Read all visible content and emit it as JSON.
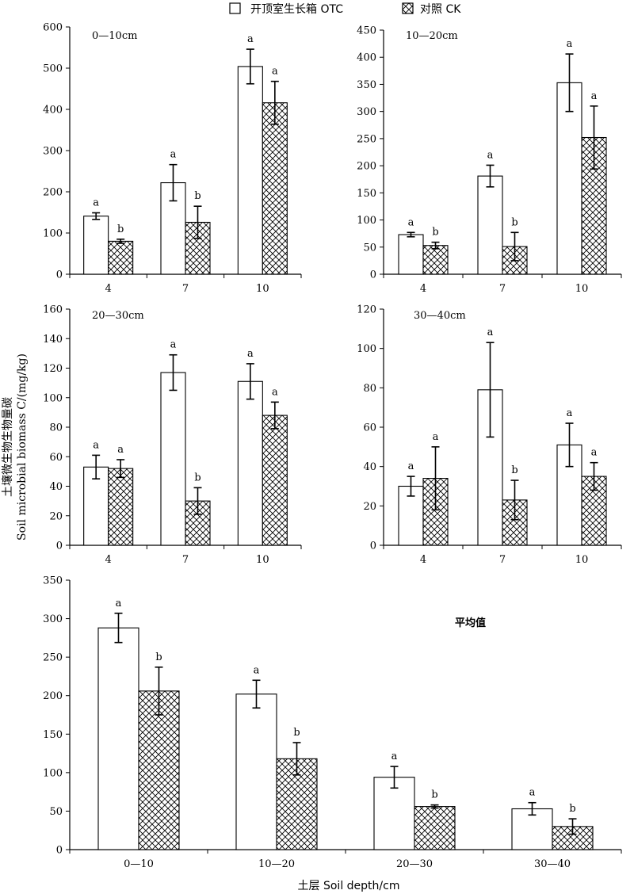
{
  "legend": {
    "otc_label": "开顶室生长箱 OTC",
    "ck_label": "对照 CK"
  },
  "y_axis_title_zh": "土壤微生物生物量碳",
  "y_axis_title_en": "Soil microbial biomass C/(mg/kg)",
  "x_axis_title": "土层 Soil depth/cm",
  "chart_data": [
    {
      "type": "bar",
      "title": "0—10cm",
      "categories": [
        "4",
        "7",
        "10"
      ],
      "ylim": [
        0,
        600
      ],
      "yticks": [
        0,
        100,
        200,
        300,
        400,
        500,
        600
      ],
      "series": [
        {
          "name": "开顶室生长箱 OTC",
          "values": [
            141,
            222,
            504
          ],
          "errors": [
            8,
            44,
            42
          ],
          "letters": [
            "a",
            "a",
            "a"
          ]
        },
        {
          "name": "对照 CK",
          "values": [
            80,
            126,
            416
          ],
          "errors": [
            5,
            39,
            52
          ],
          "letters": [
            "b",
            "b",
            "a"
          ]
        }
      ]
    },
    {
      "type": "bar",
      "title": "10—20cm",
      "categories": [
        "4",
        "7",
        "10"
      ],
      "ylim": [
        0,
        450
      ],
      "yticks": [
        0,
        50,
        100,
        150,
        200,
        250,
        300,
        350,
        400,
        450
      ],
      "series": [
        {
          "name": "开顶室生长箱 OTC",
          "values": [
            73,
            181,
            353
          ],
          "errors": [
            4,
            20,
            53
          ],
          "letters": [
            "a",
            "a",
            "a"
          ]
        },
        {
          "name": "对照 CK",
          "values": [
            53,
            51,
            252
          ],
          "errors": [
            6,
            26,
            58
          ],
          "letters": [
            "b",
            "b",
            "a"
          ]
        }
      ]
    },
    {
      "type": "bar",
      "title": "20—30cm",
      "categories": [
        "4",
        "7",
        "10"
      ],
      "ylim": [
        0,
        160
      ],
      "yticks": [
        0,
        20,
        40,
        60,
        80,
        100,
        120,
        140,
        160
      ],
      "series": [
        {
          "name": "开顶室生长箱 OTC",
          "values": [
            53,
            117,
            111
          ],
          "errors": [
            8,
            12,
            12
          ],
          "letters": [
            "a",
            "a",
            "a"
          ]
        },
        {
          "name": "对照 CK",
          "values": [
            52,
            30,
            88
          ],
          "errors": [
            6,
            9,
            9
          ],
          "letters": [
            "a",
            "b",
            "a"
          ]
        }
      ]
    },
    {
      "type": "bar",
      "title": "30—40cm",
      "categories": [
        "4",
        "7",
        "10"
      ],
      "ylim": [
        0,
        120
      ],
      "yticks": [
        0,
        20,
        40,
        60,
        80,
        100,
        120
      ],
      "series": [
        {
          "name": "开顶室生长箱 OTC",
          "values": [
            30,
            79,
            51
          ],
          "errors": [
            5,
            24,
            11
          ],
          "letters": [
            "a",
            "a",
            "a"
          ]
        },
        {
          "name": "对照 CK",
          "values": [
            34,
            23,
            35
          ],
          "errors": [
            16,
            10,
            7
          ],
          "letters": [
            "a",
            "b",
            "a"
          ]
        }
      ]
    },
    {
      "type": "bar",
      "title": "平均值",
      "categories": [
        "0—10",
        "10—20",
        "20—30",
        "30—40"
      ],
      "ylim": [
        0,
        350
      ],
      "yticks": [
        0,
        50,
        100,
        150,
        200,
        250,
        300,
        350
      ],
      "series": [
        {
          "name": "开顶室生长箱 OTC",
          "values": [
            288,
            202,
            94,
            53
          ],
          "errors": [
            19,
            18,
            14,
            8
          ],
          "letters": [
            "a",
            "a",
            "a",
            "a"
          ]
        },
        {
          "name": "对照 CK",
          "values": [
            206,
            118,
            56,
            30
          ],
          "errors": [
            31,
            21,
            2,
            10
          ],
          "letters": [
            "b",
            "b",
            "b",
            "b"
          ]
        }
      ]
    }
  ]
}
